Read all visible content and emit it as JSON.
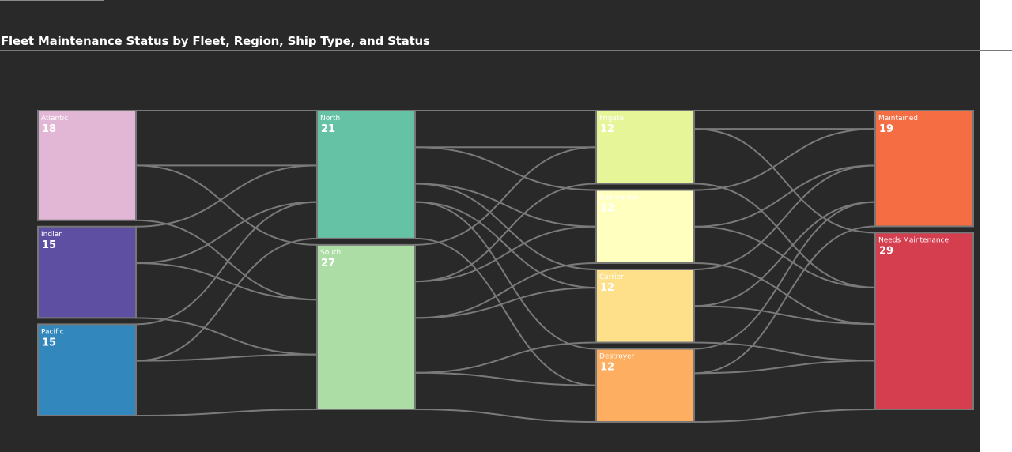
{
  "page": {
    "title": "Fleet Maintenance Status by Fleet, Region, Ship Type, and Status",
    "background": "#292929"
  },
  "chart_data": {
    "type": "sankey",
    "title": "Fleet Maintenance Status by Fleet, Region, Ship Type, and Status",
    "link_color": "#7a7a7a",
    "node_border": "#777777",
    "columns": [
      {
        "nodes": [
          {
            "id": "atlantic",
            "label": "Atlantic",
            "value": 18,
            "color": "#e2b7d5"
          },
          {
            "id": "indian",
            "label": "Indian",
            "value": 15,
            "color": "#5e4fa2"
          },
          {
            "id": "pacific",
            "label": "Pacific",
            "value": 15,
            "color": "#3288bd"
          }
        ]
      },
      {
        "nodes": [
          {
            "id": "north",
            "label": "North",
            "value": 21,
            "color": "#66c2a5"
          },
          {
            "id": "south",
            "label": "South",
            "value": 27,
            "color": "#abdda4"
          }
        ]
      },
      {
        "nodes": [
          {
            "id": "frigate",
            "label": "Frigate",
            "value": 12,
            "color": "#e6f598"
          },
          {
            "id": "submarine",
            "label": "Submarine",
            "value": 12,
            "color": "#ffffbf"
          },
          {
            "id": "carrier",
            "label": "Carrier",
            "value": 12,
            "color": "#fee08b"
          },
          {
            "id": "destroyer",
            "label": "Destroyer",
            "value": 12,
            "color": "#fdae61"
          }
        ]
      },
      {
        "nodes": [
          {
            "id": "maintained",
            "label": "Maintained",
            "value": 19,
            "color": "#f46d43"
          },
          {
            "id": "needs",
            "label": "Needs Maintenance",
            "value": 29,
            "color": "#d53e4f"
          }
        ]
      }
    ],
    "links": [
      {
        "source": "atlantic",
        "target": "north",
        "value": 9
      },
      {
        "source": "atlantic",
        "target": "south",
        "value": 9
      },
      {
        "source": "indian",
        "target": "north",
        "value": 6
      },
      {
        "source": "indian",
        "target": "south",
        "value": 9
      },
      {
        "source": "pacific",
        "target": "north",
        "value": 6
      },
      {
        "source": "pacific",
        "target": "south",
        "value": 9
      },
      {
        "source": "north",
        "target": "frigate",
        "value": 6
      },
      {
        "source": "north",
        "target": "submarine",
        "value": 6
      },
      {
        "source": "north",
        "target": "carrier",
        "value": 3
      },
      {
        "source": "north",
        "target": "destroyer",
        "value": 6
      },
      {
        "source": "south",
        "target": "frigate",
        "value": 6
      },
      {
        "source": "south",
        "target": "submarine",
        "value": 6
      },
      {
        "source": "south",
        "target": "carrier",
        "value": 9
      },
      {
        "source": "south",
        "target": "destroyer",
        "value": 6
      },
      {
        "source": "frigate",
        "target": "maintained",
        "value": 3
      },
      {
        "source": "frigate",
        "target": "needs",
        "value": 9
      },
      {
        "source": "submarine",
        "target": "maintained",
        "value": 6
      },
      {
        "source": "submarine",
        "target": "needs",
        "value": 6
      },
      {
        "source": "carrier",
        "target": "maintained",
        "value": 6
      },
      {
        "source": "carrier",
        "target": "needs",
        "value": 6
      },
      {
        "source": "destroyer",
        "target": "maintained",
        "value": 4
      },
      {
        "source": "destroyer",
        "target": "needs",
        "value": 8
      }
    ]
  }
}
